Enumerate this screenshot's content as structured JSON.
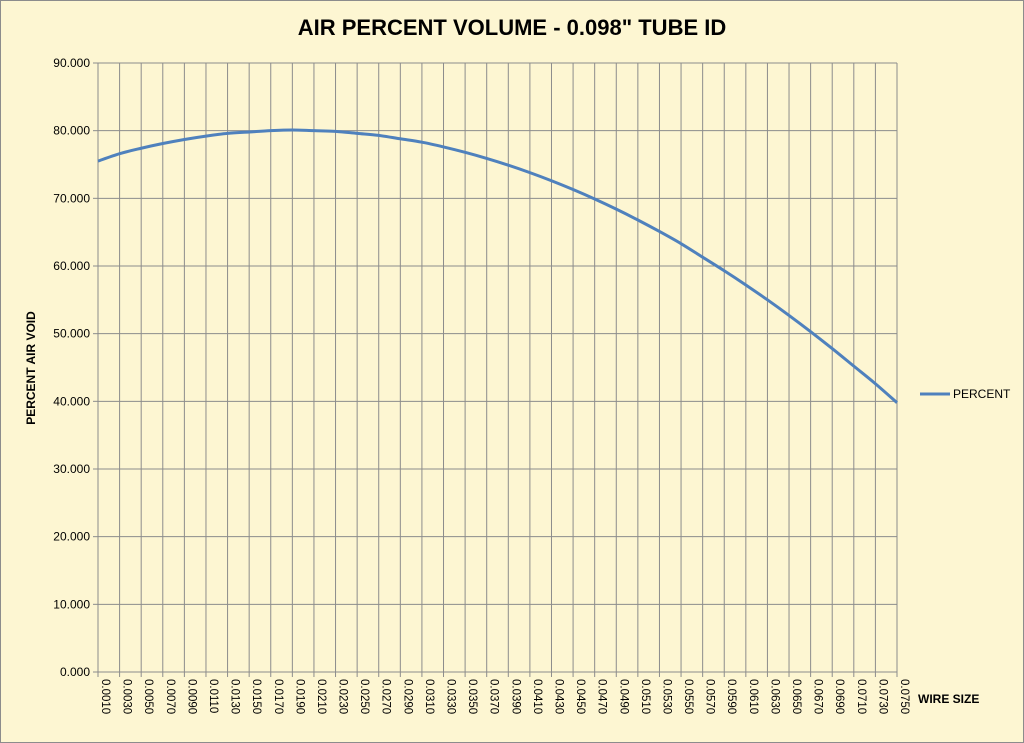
{
  "chart_data": {
    "type": "line",
    "title": "AIR PERCENT VOLUME - 0.098\" TUBE ID",
    "xlabel": "WIRE SIZE",
    "ylabel": "PERCENT AIR VOID",
    "ylim": [
      0,
      90
    ],
    "yticks": [
      "0.000",
      "10.000",
      "20.000",
      "30.000",
      "40.000",
      "50.000",
      "60.000",
      "70.000",
      "80.000",
      "90.000"
    ],
    "grid": true,
    "legend_position": "right",
    "categories": [
      "0.0010",
      "0.0030",
      "0.0050",
      "0.0070",
      "0.0090",
      "0.0110",
      "0.0130",
      "0.0150",
      "0.0170",
      "0.0190",
      "0.0210",
      "0.0230",
      "0.0250",
      "0.0270",
      "0.0290",
      "0.0310",
      "0.0330",
      "0.0350",
      "0.0370",
      "0.0390",
      "0.0410",
      "0.0430",
      "0.0450",
      "0.0470",
      "0.0490",
      "0.0510",
      "0.0530",
      "0.0550",
      "0.0570",
      "0.0590",
      "0.0610",
      "0.0630",
      "0.0650",
      "0.0670",
      "0.0690",
      "0.0710",
      "0.0730",
      "0.0750"
    ],
    "series": [
      {
        "name": "PERCENT",
        "color": "#4f81bd",
        "values": [
          75.5,
          76.6,
          77.4,
          78.1,
          78.7,
          79.2,
          79.6,
          79.8,
          80.0,
          80.1,
          80.0,
          79.9,
          79.6,
          79.3,
          78.8,
          78.3,
          77.6,
          76.8,
          75.9,
          74.9,
          73.8,
          72.6,
          71.3,
          69.9,
          68.4,
          66.8,
          65.1,
          63.3,
          61.3,
          59.3,
          57.2,
          55.0,
          52.7,
          50.3,
          47.8,
          45.2,
          42.6,
          39.8
        ]
      }
    ]
  }
}
